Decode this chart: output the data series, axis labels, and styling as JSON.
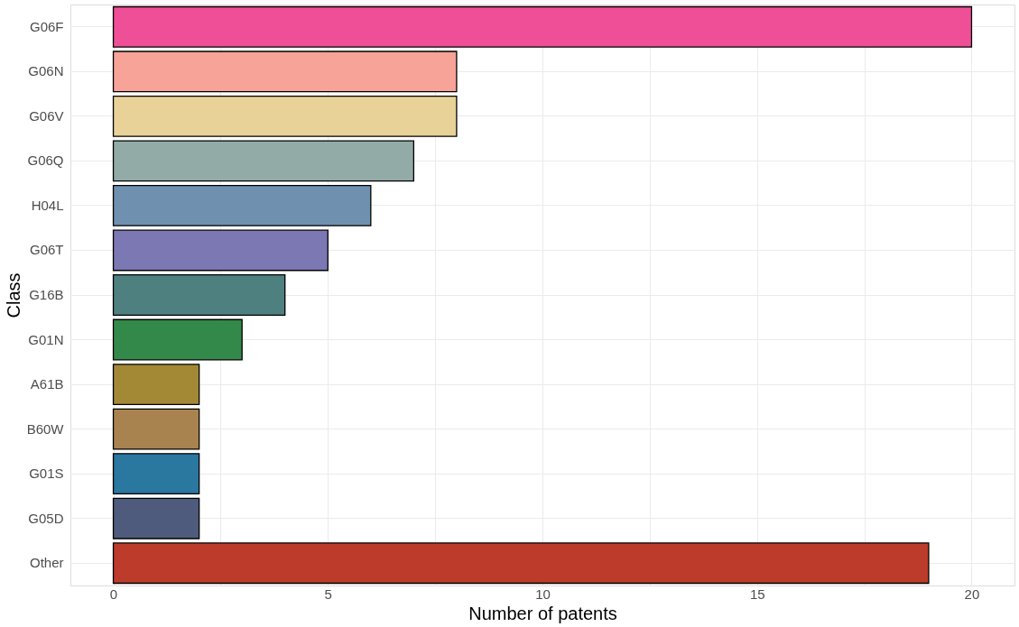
{
  "chart_data": {
    "type": "bar",
    "orientation": "horizontal",
    "xlabel": "Number of patents",
    "ylabel": "Class",
    "categories": [
      "G06F",
      "G06N",
      "G06V",
      "G06Q",
      "H04L",
      "G06T",
      "G16B",
      "G01N",
      "A61B",
      "B60W",
      "G01S",
      "G05D",
      "Other"
    ],
    "values": [
      20,
      8,
      8,
      7,
      6,
      5,
      4,
      3,
      2,
      2,
      2,
      2,
      19
    ],
    "colors": [
      "#ef4f96",
      "#f8a398",
      "#e8d298",
      "#93aba6",
      "#7090b0",
      "#7b78b3",
      "#4e8080",
      "#33894a",
      "#a38836",
      "#a9834f",
      "#2a77a0",
      "#4f5b7c",
      "#bd3b2a"
    ],
    "xlim": [
      -1,
      21
    ],
    "xticks": [
      0,
      {
        "value": 2.5,
        "label": null
      },
      5,
      {
        "value": 7.5,
        "label": null
      },
      10,
      {
        "value": 12.5,
        "label": null
      },
      15,
      {
        "value": 17.5,
        "label": null
      },
      20
    ],
    "grid": true
  }
}
